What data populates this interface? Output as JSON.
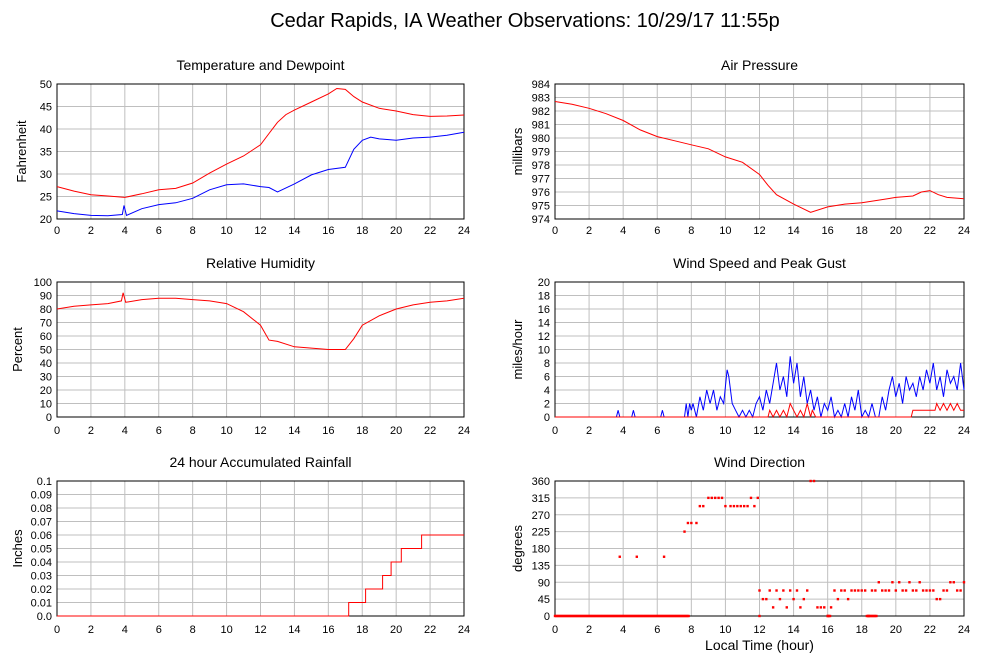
{
  "page_title": "Cedar Rapids, IA Weather Observations: 10/29/17 11:55p",
  "colors": {
    "red": "#ff0000",
    "blue": "#0000ff",
    "grid": "#bfbfbf"
  },
  "chart_data": [
    {
      "id": "temp",
      "type": "line",
      "title": "Temperature and Dewpoint",
      "xlabel": "",
      "ylabel": "Fahrenheit",
      "xlim": [
        0,
        24
      ],
      "ylim": [
        20,
        50
      ],
      "xticks": [
        0,
        2,
        4,
        6,
        8,
        10,
        12,
        14,
        16,
        18,
        20,
        22,
        24
      ],
      "yticks": [
        20,
        25,
        30,
        35,
        40,
        45,
        50
      ],
      "series": [
        {
          "color": "#ff0000",
          "x": [
            0,
            1,
            2,
            3,
            4,
            5,
            6,
            7,
            8,
            9,
            10,
            11,
            12,
            12.5,
            13,
            13.5,
            14,
            15,
            16,
            16.5,
            17,
            17.5,
            18,
            19,
            20,
            21,
            22,
            23,
            24
          ],
          "y": [
            27.2,
            26.2,
            25.4,
            25.1,
            24.8,
            25.6,
            26.5,
            26.8,
            28.0,
            30.2,
            32.2,
            34.0,
            36.5,
            39.0,
            41.5,
            43.2,
            44.2,
            46.0,
            47.8,
            49.0,
            48.8,
            47.2,
            46.0,
            44.6,
            44.0,
            43.2,
            42.8,
            42.9,
            43.1
          ]
        },
        {
          "color": "#0000ff",
          "x": [
            0,
            1,
            2,
            3,
            3.85,
            3.95,
            4.1,
            5,
            6,
            7,
            8,
            9,
            10,
            11,
            12,
            12.5,
            13,
            14,
            15,
            16,
            17,
            17.5,
            18,
            18.5,
            19,
            20,
            21,
            22,
            23,
            24
          ],
          "y": [
            21.8,
            21.2,
            20.8,
            20.7,
            21.0,
            23.0,
            20.8,
            22.3,
            23.2,
            23.6,
            24.6,
            26.5,
            27.6,
            27.8,
            27.2,
            27.0,
            26.0,
            27.8,
            29.8,
            31.0,
            31.5,
            35.5,
            37.5,
            38.2,
            37.8,
            37.5,
            38.0,
            38.2,
            38.6,
            39.3
          ]
        }
      ]
    },
    {
      "id": "pressure",
      "type": "line",
      "title": "Air Pressure",
      "xlabel": "",
      "ylabel": "millibars",
      "xlim": [
        0,
        24
      ],
      "ylim": [
        974,
        984
      ],
      "xticks": [
        0,
        2,
        4,
        6,
        8,
        10,
        12,
        14,
        16,
        18,
        20,
        22,
        24
      ],
      "yticks": [
        974,
        975,
        976,
        977,
        978,
        979,
        980,
        981,
        982,
        983,
        984
      ],
      "series": [
        {
          "color": "#ff0000",
          "x": [
            0,
            1,
            2,
            3,
            4,
            5,
            6,
            7,
            8,
            9,
            10,
            11,
            12,
            12.5,
            13,
            14,
            15,
            16,
            17,
            18,
            19,
            20,
            21,
            21.5,
            22,
            22.5,
            23,
            24
          ],
          "y": [
            982.7,
            982.5,
            982.2,
            981.8,
            981.3,
            980.6,
            980.1,
            979.8,
            979.5,
            979.2,
            978.6,
            978.2,
            977.3,
            976.5,
            975.8,
            975.1,
            974.5,
            974.9,
            975.1,
            975.2,
            975.4,
            975.6,
            975.7,
            976.0,
            976.1,
            975.8,
            975.6,
            975.5
          ]
        }
      ]
    },
    {
      "id": "humidity",
      "type": "line",
      "title": "Relative Humidity",
      "xlabel": "",
      "ylabel": "Percent",
      "xlim": [
        0,
        24
      ],
      "ylim": [
        0,
        100
      ],
      "xticks": [
        0,
        2,
        4,
        6,
        8,
        10,
        12,
        14,
        16,
        18,
        20,
        22,
        24
      ],
      "yticks": [
        0,
        10,
        20,
        30,
        40,
        50,
        60,
        70,
        80,
        90,
        100
      ],
      "series": [
        {
          "color": "#ff0000",
          "x": [
            0,
            1,
            2,
            3,
            3.8,
            3.9,
            4.05,
            5,
            6,
            7,
            8,
            9,
            10,
            11,
            12,
            12.5,
            13,
            14,
            15,
            16,
            16.5,
            17,
            17.5,
            18,
            19,
            20,
            21,
            22,
            23,
            24
          ],
          "y": [
            80,
            82,
            83,
            84,
            86,
            92,
            85,
            87,
            88,
            88,
            87,
            86,
            84,
            78,
            68,
            57,
            56,
            52,
            51,
            50,
            50,
            50,
            58,
            68,
            75,
            80,
            83,
            85,
            86,
            88
          ]
        }
      ]
    },
    {
      "id": "wind_speed",
      "type": "line",
      "title": "Wind Speed and Peak Gust",
      "xlabel": "",
      "ylabel": "miles/hour",
      "xlim": [
        0,
        24
      ],
      "ylim": [
        0,
        20
      ],
      "xticks": [
        0,
        2,
        4,
        6,
        8,
        10,
        12,
        14,
        16,
        18,
        20,
        22,
        24
      ],
      "yticks": [
        0,
        2,
        4,
        6,
        8,
        10,
        12,
        14,
        16,
        18,
        20
      ],
      "series": [
        {
          "color": "#0000ff",
          "x": [
            0,
            3.6,
            3.7,
            3.8,
            4.5,
            4.6,
            4.7,
            6.2,
            6.3,
            6.4,
            7.6,
            7.7,
            7.8,
            7.9,
            8.0,
            8.1,
            8.3,
            8.5,
            8.7,
            8.9,
            9.1,
            9.3,
            9.5,
            9.7,
            9.9,
            10.1,
            10.2,
            10.4,
            10.6,
            10.8,
            11.0,
            11.2,
            11.4,
            11.6,
            11.8,
            12.0,
            12.2,
            12.4,
            12.6,
            12.8,
            13.0,
            13.2,
            13.4,
            13.6,
            13.8,
            14.0,
            14.2,
            14.4,
            14.6,
            14.8,
            15.0,
            15.2,
            15.4,
            15.6,
            15.8,
            16.0,
            16.2,
            16.4,
            16.6,
            16.8,
            17.0,
            17.2,
            17.4,
            17.6,
            17.8,
            18.0,
            18.2,
            18.4,
            18.6,
            18.8,
            19.0,
            19.2,
            19.4,
            19.6,
            19.8,
            20.0,
            20.2,
            20.4,
            20.6,
            20.8,
            21.0,
            21.2,
            21.4,
            21.6,
            21.8,
            22.0,
            22.2,
            22.4,
            22.6,
            22.8,
            23.0,
            23.2,
            23.4,
            23.6,
            23.8,
            24.0
          ],
          "y": [
            0,
            0,
            1,
            0,
            0,
            1,
            0,
            0,
            1,
            0,
            0,
            2,
            0,
            2,
            1,
            2,
            0,
            3,
            1,
            4,
            2,
            4,
            1,
            3,
            2,
            7,
            6,
            2,
            1,
            0,
            1,
            0,
            1,
            0,
            2,
            3,
            1,
            4,
            2,
            5,
            8,
            4,
            6,
            3,
            9,
            5,
            8,
            3,
            6,
            2,
            4,
            1,
            3,
            0,
            2,
            1,
            3,
            0,
            1,
            0,
            2,
            0,
            3,
            1,
            4,
            0,
            1,
            0,
            2,
            0,
            0,
            3,
            1,
            4,
            6,
            3,
            5,
            2,
            6,
            4,
            5,
            3,
            6,
            4,
            7,
            5,
            8,
            4,
            6,
            3,
            7,
            5,
            6,
            4,
            8,
            4
          ]
        },
        {
          "color": "#ff0000",
          "x": [
            0,
            12.5,
            12.6,
            12.8,
            13.0,
            13.2,
            13.4,
            13.6,
            13.8,
            14.0,
            14.2,
            14.4,
            14.6,
            14.8,
            15.0,
            15.1,
            15.3,
            15.5,
            20.9,
            21.0,
            21.4,
            21.5,
            22.3,
            22.4,
            22.6,
            22.8,
            23.0,
            23.2,
            23.4,
            23.6,
            23.8,
            24.0
          ],
          "y": [
            0,
            0,
            1,
            0,
            1,
            0,
            1,
            0,
            2,
            1,
            0,
            1,
            0,
            2,
            0,
            1,
            0,
            0,
            0,
            1,
            1,
            1,
            1,
            2,
            1,
            2,
            1,
            2,
            1,
            2,
            1,
            1
          ]
        }
      ]
    },
    {
      "id": "rain",
      "type": "line",
      "title": "24 hour Accumulated Rainfall",
      "xlabel": "",
      "ylabel": "Inches",
      "xlim": [
        0,
        24
      ],
      "ylim": [
        0,
        0.1
      ],
      "xticks": [
        0,
        2,
        4,
        6,
        8,
        10,
        12,
        14,
        16,
        18,
        20,
        22,
        24
      ],
      "yticks": [
        0.0,
        0.01,
        0.02,
        0.03,
        0.04,
        0.05,
        0.06,
        0.07,
        0.08,
        0.09,
        0.1
      ],
      "yticklabels": [
        "0.0",
        "0.01",
        "0.02",
        "0.03",
        "0.04",
        "0.05",
        "0.06",
        "0.07",
        "0.08",
        "0.09",
        "0.1"
      ],
      "series": [
        {
          "color": "#ff0000",
          "step": true,
          "x": [
            0,
            17.2,
            18.2,
            19.2,
            19.7,
            20.3,
            20.7,
            21.5,
            24
          ],
          "y": [
            0,
            0.01,
            0.02,
            0.03,
            0.04,
            0.05,
            0.05,
            0.06,
            0.06
          ]
        }
      ]
    },
    {
      "id": "wind_dir",
      "type": "scatter",
      "title": "Wind Direction",
      "xlabel": "Local Time (hour)",
      "ylabel": "degrees",
      "xlim": [
        0,
        24
      ],
      "ylim": [
        0,
        360
      ],
      "xticks": [
        0,
        2,
        4,
        6,
        8,
        10,
        12,
        14,
        16,
        18,
        20,
        22,
        24
      ],
      "yticks": [
        0,
        45,
        90,
        135,
        180,
        225,
        270,
        315,
        360
      ],
      "series": [
        {
          "color": "#ff0000",
          "x": [
            3.8,
            4.8,
            6.4,
            7.6,
            7.8,
            8.0,
            8.3,
            8.5,
            8.7,
            9.0,
            9.2,
            9.4,
            9.6,
            9.8,
            10.0,
            10.3,
            10.5,
            10.7,
            10.9,
            11.1,
            11.3,
            11.5,
            11.7,
            11.9,
            12.0,
            12.2,
            12.4,
            12.6,
            12.8,
            13.0,
            13.2,
            13.4,
            13.6,
            13.8,
            14.0,
            14.2,
            14.4,
            14.6,
            14.8,
            15.0,
            15.2,
            15.4,
            15.6,
            15.8,
            16.0,
            16.2,
            16.4,
            16.6,
            16.8,
            17.0,
            17.2,
            17.4,
            17.6,
            17.8,
            18.0,
            18.2,
            18.4,
            18.6,
            18.8,
            19.0,
            19.2,
            19.4,
            19.6,
            19.8,
            20.0,
            20.2,
            20.4,
            20.6,
            20.8,
            21.0,
            21.2,
            21.4,
            21.6,
            21.8,
            22.0,
            22.2,
            22.4,
            22.6,
            22.8,
            23.0,
            23.2,
            23.4,
            23.6,
            23.8,
            24.0
          ],
          "y": [
            158,
            158,
            158,
            225,
            248,
            248,
            248,
            293,
            293,
            315,
            315,
            315,
            315,
            315,
            293,
            293,
            293,
            293,
            293,
            293,
            293,
            315,
            293,
            315,
            68,
            45,
            45,
            68,
            23,
            68,
            45,
            68,
            23,
            68,
            45,
            68,
            23,
            45,
            68,
            360,
            360,
            23,
            23,
            23,
            0,
            23,
            68,
            45,
            68,
            68,
            45,
            68,
            68,
            68,
            68,
            68,
            0,
            68,
            68,
            90,
            68,
            68,
            68,
            90,
            68,
            90,
            68,
            68,
            90,
            68,
            68,
            90,
            68,
            68,
            68,
            68,
            45,
            45,
            68,
            68,
            90,
            90,
            68,
            68,
            90
          ]
        }
      ]
    }
  ]
}
